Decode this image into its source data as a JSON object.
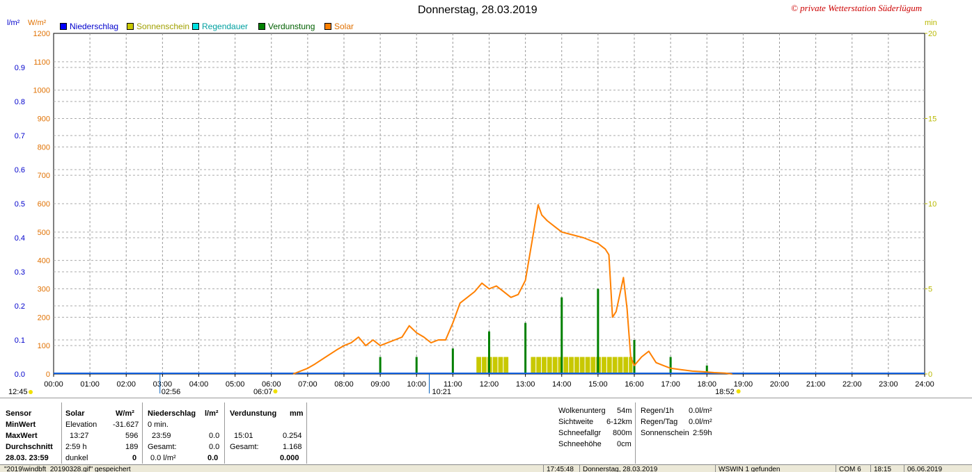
{
  "header": {
    "title": "Donnerstag, 28.03.2019",
    "copyright": "© private Wetterstation Süderlügum"
  },
  "legend": [
    {
      "label": "Niederschlag",
      "color": "#0000ff"
    },
    {
      "label": "Sonnenschein",
      "color": "#c8c800"
    },
    {
      "label": "Regendauer",
      "color": "#00e0e0"
    },
    {
      "label": "Verdunstung",
      "color": "#008000"
    },
    {
      "label": "Solar",
      "color": "#ff8000"
    }
  ],
  "units": {
    "left_blue": "l/m²",
    "left_orange": "W/m²",
    "right": "min"
  },
  "chart_data": {
    "type": "line",
    "title": "Donnerstag, 28.03.2019",
    "x_range_hours": [
      0,
      24
    ],
    "x_ticks": [
      "00:00",
      "01:00",
      "02:00",
      "03:00",
      "04:00",
      "05:00",
      "06:00",
      "07:00",
      "08:00",
      "09:00",
      "10:00",
      "11:00",
      "12:00",
      "13:00",
      "14:00",
      "15:00",
      "16:00",
      "17:00",
      "18:00",
      "19:00",
      "20:00",
      "21:00",
      "22:00",
      "23:00",
      "24:00"
    ],
    "axis_left_solar": {
      "unit": "W/m²",
      "range": [
        0,
        1200
      ],
      "ticks": [
        "0",
        "100",
        "200",
        "300",
        "400",
        "500",
        "600",
        "700",
        "800",
        "900",
        "1000",
        "1100",
        "1200"
      ]
    },
    "axis_left_precip": {
      "unit": "l/m²",
      "range": [
        0,
        1.0
      ],
      "ticks": [
        "0.0",
        "0.1",
        "0.2",
        "0.3",
        "0.4",
        "0.5",
        "0.6",
        "0.7",
        "0.8",
        "0.9"
      ]
    },
    "axis_right": {
      "unit": "min",
      "range": [
        0,
        20
      ],
      "ticks": [
        "0",
        "5",
        "10",
        "15",
        "20"
      ]
    },
    "grid": true,
    "series": [
      {
        "name": "Solar",
        "color": "#ff8000",
        "x": [
          6.6,
          6.8,
          7.0,
          7.2,
          7.5,
          7.8,
          8.0,
          8.2,
          8.4,
          8.6,
          8.8,
          9.0,
          9.2,
          9.4,
          9.6,
          9.8,
          10.0,
          10.2,
          10.4,
          10.6,
          10.8,
          11.0,
          11.2,
          11.4,
          11.6,
          11.8,
          12.0,
          12.2,
          12.4,
          12.6,
          12.8,
          13.0,
          13.2,
          13.35,
          13.45,
          13.6,
          13.8,
          14.0,
          14.3,
          14.6,
          15.0,
          15.2,
          15.3,
          15.4,
          15.5,
          15.7,
          15.8,
          15.9,
          16.0,
          16.2,
          16.4,
          16.6,
          16.8,
          17.0,
          17.3,
          17.6,
          17.9,
          18.2,
          18.5,
          18.7
        ],
        "y": [
          0,
          10,
          20,
          35,
          60,
          85,
          100,
          110,
          130,
          100,
          120,
          100,
          110,
          120,
          130,
          170,
          145,
          130,
          110,
          120,
          120,
          180,
          250,
          270,
          290,
          320,
          300,
          310,
          290,
          270,
          280,
          330,
          480,
          596,
          560,
          540,
          520,
          500,
          490,
          480,
          460,
          440,
          420,
          200,
          220,
          340,
          230,
          60,
          30,
          60,
          80,
          40,
          30,
          20,
          15,
          10,
          8,
          5,
          3,
          0
        ]
      },
      {
        "name": "Verdunstung",
        "color": "#008000",
        "x": [
          9.0,
          10.0,
          11.0,
          12.0,
          13.0,
          14.0,
          15.0,
          16.0,
          17.0,
          18.0
        ],
        "y_min": [
          1.0,
          1.0,
          1.5,
          2.5,
          3.0,
          4.5,
          5.0,
          2.0,
          1.0,
          0.5
        ]
      },
      {
        "name": "Sonnenschein",
        "color": "#c8c800",
        "blocks": [
          [
            11.65,
            12.55
          ],
          [
            13.15,
            15.95
          ]
        ],
        "y_min": 1.0
      },
      {
        "name": "Niederschlag",
        "color": "#0000ff",
        "values_l_m2": 0.0
      }
    ],
    "markers": {
      "left_time": "12:45",
      "moonrise_label": "02:56",
      "sunrise_label": "06:07",
      "moon_label": "10:21",
      "sunset_label": "18:52"
    }
  },
  "panel": {
    "sensor": {
      "label": "Sensor",
      "rows": [
        "MinWert",
        "MaxWert",
        "Durchschnitt",
        "28.03. 23:59"
      ]
    },
    "solar": {
      "label": "Solar",
      "unit": "W/m²",
      "rows": [
        [
          "Elevation",
          "-31.627"
        ],
        [
          "13:27",
          "596"
        ],
        [
          "2:59 h",
          "189"
        ],
        [
          "dunkel",
          "0"
        ]
      ]
    },
    "niederschlag": {
      "label": "Niederschlag",
      "unit": "l/m²",
      "rows": [
        [
          "0 min.",
          ""
        ],
        [
          "23:59",
          "0.0"
        ],
        [
          "Gesamt:",
          "0.0"
        ],
        [
          "0.0 l/m²",
          "0.0"
        ]
      ]
    },
    "verdunstung": {
      "label": "Verdunstung",
      "unit": "mm",
      "rows": [
        [
          "",
          ""
        ],
        [
          "15:01",
          "0.254"
        ],
        [
          "Gesamt:",
          "1.168"
        ],
        [
          "",
          "0.000"
        ]
      ]
    },
    "weather": [
      [
        "Wolkenunterg",
        "54m"
      ],
      [
        "Sichtweite",
        "6-12km"
      ],
      [
        "Schneefallgr",
        "800m"
      ],
      [
        "Schneehöhe",
        "0cm"
      ]
    ],
    "rain": [
      [
        "Regen/1h",
        "0.0l/m²"
      ],
      [
        "Regen/Tag",
        "0.0l/m²"
      ],
      [
        "Sonnenschein",
        "2:59h"
      ]
    ]
  },
  "statusbar": [
    "\"2019\\windbft_20190328.gif\" gespeichert",
    "17:45:48",
    "Donnerstag, 28.03.2019",
    "WSWIN 1 gefunden",
    "COM 6",
    "18:15",
    "06.06.2019"
  ]
}
